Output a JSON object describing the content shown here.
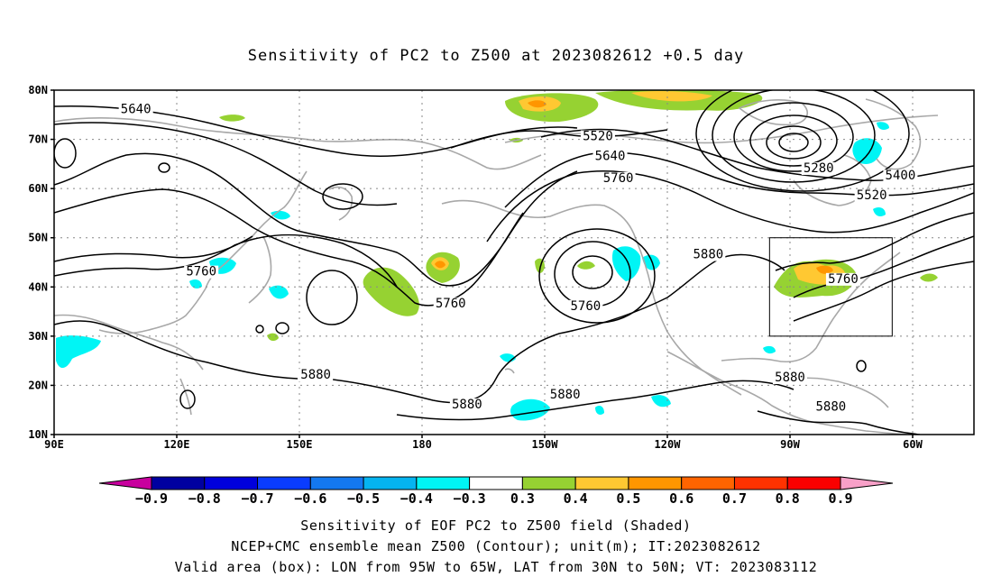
{
  "title": "Sensitivity of PC2 to Z500 at 2023082612 +0.5 day",
  "map": {
    "lat_labels": [
      "80N",
      "70N",
      "60N",
      "50N",
      "40N",
      "30N",
      "20N",
      "10N"
    ],
    "lat_values": [
      80,
      70,
      60,
      50,
      40,
      30,
      20,
      10
    ],
    "lon_labels": [
      "90E",
      "120E",
      "150E",
      "180",
      "150W",
      "120W",
      "90W",
      "60W"
    ],
    "lon_values": [
      90,
      120,
      150,
      180,
      210,
      240,
      270,
      300
    ],
    "lon_range": [
      90,
      315
    ],
    "lat_range": [
      10,
      80
    ],
    "box": {
      "lon_min": 265,
      "lon_max": 295,
      "lat_min": 30,
      "lat_max": 50
    },
    "contour_labels": [
      {
        "text": "5640",
        "lon": 110,
        "lat": 75.5
      },
      {
        "text": "5520",
        "lon": 223,
        "lat": 70
      },
      {
        "text": "5640",
        "lon": 226,
        "lat": 66
      },
      {
        "text": "5760",
        "lon": 228,
        "lat": 61.5
      },
      {
        "text": "5280",
        "lon": 277,
        "lat": 63.5
      },
      {
        "text": "5400",
        "lon": 297,
        "lat": 62
      },
      {
        "text": "5520",
        "lon": 290,
        "lat": 58
      },
      {
        "text": "5880",
        "lon": 250,
        "lat": 46
      },
      {
        "text": "5760",
        "lon": 283,
        "lat": 41
      },
      {
        "text": "5760",
        "lon": 126,
        "lat": 42.5
      },
      {
        "text": "5760",
        "lon": 187,
        "lat": 36
      },
      {
        "text": "5760",
        "lon": 220,
        "lat": 35.5
      },
      {
        "text": "5880",
        "lon": 154,
        "lat": 21.5
      },
      {
        "text": "5880",
        "lon": 191,
        "lat": 15.5
      },
      {
        "text": "5880",
        "lon": 215,
        "lat": 17.5
      },
      {
        "text": "5880",
        "lon": 270,
        "lat": 21
      },
      {
        "text": "5880",
        "lon": 280,
        "lat": 15
      }
    ]
  },
  "colorbar": {
    "labels": [
      "−0.9",
      "−0.8",
      "−0.7",
      "−0.6",
      "−0.5",
      "−0.4",
      "−0.3",
      "0.3",
      "0.4",
      "0.5",
      "0.6",
      "0.7",
      "0.8",
      "0.9"
    ],
    "colors": [
      "#c8009e",
      "#0000a0",
      "#0000dc",
      "#0a3cff",
      "#1478f0",
      "#05b4f0",
      "#00f5f5",
      "#ffffff",
      "#96d232",
      "#ffc832",
      "#ff9600",
      "#ff6400",
      "#ff3200",
      "#fa0000",
      "#f8a0c8"
    ]
  },
  "captions": {
    "line1": "Sensitivity of EOF PC2 to Z500 field (Shaded)",
    "line2": "NCEP+CMC ensemble mean Z500 (Contour); unit(m); IT:2023082612",
    "line3": "Valid area (box): LON from 95W to 65W, LAT from 30N to 50N; VT: 2023083112"
  },
  "colors": {
    "coast": "#a8a8a8",
    "contour": "#000000",
    "grid": "#888888",
    "pos_low": "#96d232",
    "pos_mid": "#ffc832",
    "pos_high": "#ff9600",
    "neg_low": "#00f5f5",
    "neg_mid": "#05b4f0"
  }
}
